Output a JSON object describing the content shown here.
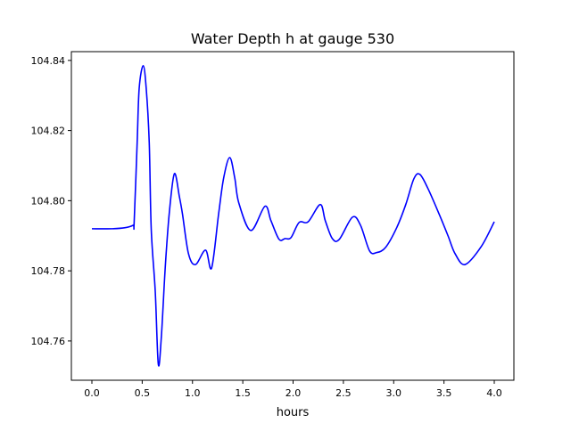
{
  "chart_data": {
    "type": "line",
    "title": "Water Depth h at gauge 530",
    "xlabel": "hours",
    "ylabel": "",
    "xlim": [
      -0.204,
      4.195
    ],
    "ylim": [
      104.7488,
      104.8425
    ],
    "grid": false,
    "color": "#0000ff",
    "xticks": [
      0.0,
      0.5,
      1.0,
      1.5,
      2.0,
      2.5,
      3.0,
      3.5,
      4.0
    ],
    "xtick_labels": [
      "0.0",
      "0.5",
      "1.0",
      "1.5",
      "2.0",
      "2.5",
      "3.0",
      "3.5",
      "4.0"
    ],
    "yticks": [
      104.76,
      104.78,
      104.8,
      104.82,
      104.84
    ],
    "ytick_labels": [
      "104.76",
      "104.78",
      "104.80",
      "104.82",
      "104.84"
    ],
    "series": [
      {
        "name": "h",
        "x": [
          0.0,
          0.2,
          0.33,
          0.41,
          0.42,
          0.45,
          0.47,
          0.51,
          0.54,
          0.57,
          0.59,
          0.63,
          0.66,
          0.69,
          0.73,
          0.77,
          0.82,
          0.87,
          0.9,
          0.96,
          1.03,
          1.13,
          1.19,
          1.26,
          1.31,
          1.37,
          1.42,
          1.46,
          1.58,
          1.72,
          1.78,
          1.86,
          1.92,
          1.98,
          2.06,
          2.15,
          2.27,
          2.32,
          2.39,
          2.46,
          2.59,
          2.67,
          2.76,
          2.83,
          2.92,
          3.03,
          3.12,
          3.2,
          3.26,
          3.34,
          3.45,
          3.54,
          3.61,
          3.71,
          3.87,
          4.0
        ],
        "y": [
          104.792,
          104.792,
          104.7923,
          104.793,
          104.7938,
          104.8166,
          104.832,
          104.8385,
          104.832,
          104.8166,
          104.7918,
          104.774,
          104.7534,
          104.761,
          104.7814,
          104.7967,
          104.8077,
          104.8011,
          104.7963,
          104.7849,
          104.7818,
          104.7859,
          104.7808,
          104.7963,
          104.8065,
          104.8123,
          104.8065,
          104.7994,
          104.7915,
          104.7984,
          104.7943,
          104.789,
          104.7892,
          104.7895,
          104.7938,
          104.794,
          104.7989,
          104.7943,
          104.7892,
          104.789,
          104.7953,
          104.793,
          104.7857,
          104.7852,
          104.7867,
          104.7923,
          104.7989,
          104.8062,
          104.8075,
          104.8035,
          104.7963,
          104.79,
          104.7849,
          104.7818,
          104.7869,
          104.794
        ]
      }
    ]
  }
}
